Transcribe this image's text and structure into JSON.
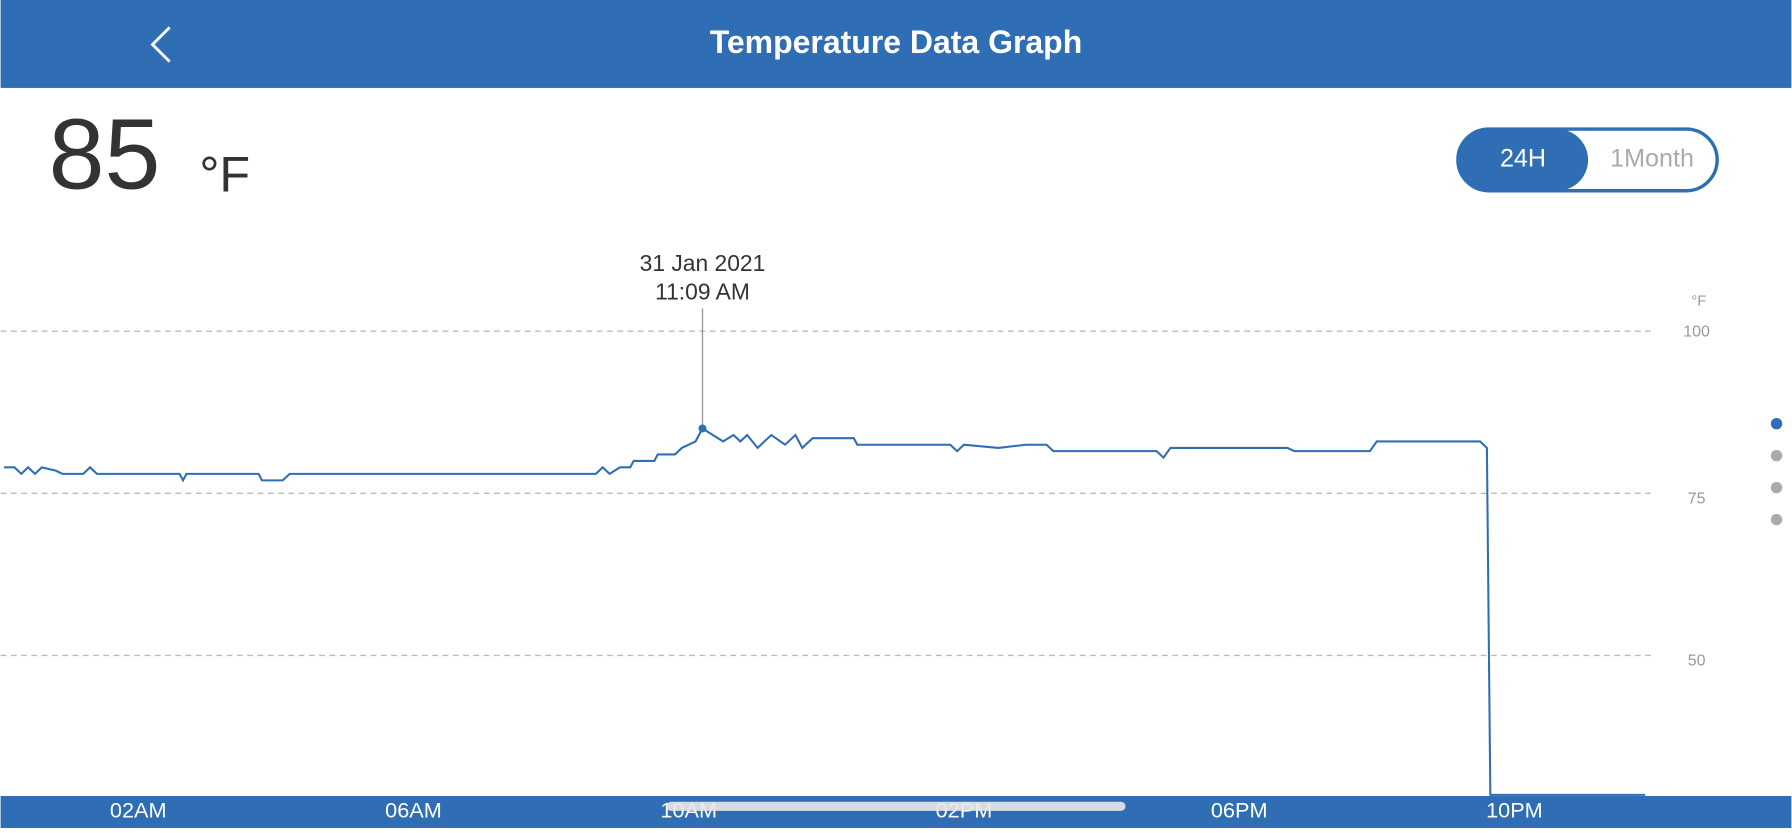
{
  "header": {
    "title": "Temperature Data Graph"
  },
  "reading": {
    "value": "85",
    "unit": "°F"
  },
  "toggle": {
    "options": [
      "24H",
      "1Month"
    ],
    "selected": "24H"
  },
  "tooltip": {
    "date": "31 Jan 2021",
    "time": "11:09 AM"
  },
  "chart_data": {
    "type": "line",
    "y_unit": "°F",
    "color": "#2f6db5",
    "grid": true,
    "xlim": [
      0,
      24
    ],
    "xticks": [
      {
        "value": 2,
        "label": "02AM"
      },
      {
        "value": 6,
        "label": "06AM"
      },
      {
        "value": 10,
        "label": "10AM"
      },
      {
        "value": 14,
        "label": "02PM"
      },
      {
        "value": 18,
        "label": "06PM"
      },
      {
        "value": 22,
        "label": "10PM"
      }
    ],
    "ylim": [
      28.5,
      100
    ],
    "yticks": [
      50,
      75,
      100
    ],
    "series": [
      {
        "name": "Temperature",
        "color": "#2f6db5",
        "x": [
          0.05,
          0.2,
          0.3,
          0.4,
          0.5,
          0.6,
          0.8,
          0.9,
          1.2,
          1.3,
          1.4,
          2.6,
          2.65,
          2.7,
          3.75,
          3.8,
          4.1,
          4.2,
          8.65,
          8.75,
          8.85,
          9.0,
          9.15,
          9.2,
          9.5,
          9.55,
          9.8,
          9.9,
          10.1,
          10.2,
          10.35,
          10.5,
          10.65,
          10.75,
          10.85,
          11.0,
          11.2,
          11.4,
          11.55,
          11.65,
          11.8,
          12.4,
          12.45,
          13.8,
          13.9,
          14.0,
          14.5,
          14.9,
          15.2,
          15.3,
          16.8,
          16.9,
          17.0,
          18.7,
          18.8,
          19.9,
          20.0,
          20.2,
          21.5,
          21.6,
          21.65,
          23.9
        ],
        "values": [
          79,
          79,
          78,
          79,
          78,
          79,
          78.5,
          78,
          78,
          79,
          78,
          78,
          77,
          78,
          78,
          77,
          77,
          78,
          78,
          79,
          78,
          79,
          79,
          80,
          80,
          81,
          81,
          82,
          83,
          85,
          84,
          83,
          84,
          83,
          84,
          82,
          84,
          82.5,
          84,
          82,
          83.5,
          83.5,
          82.5,
          82.5,
          81.5,
          82.5,
          82,
          82.5,
          82.5,
          81.5,
          81.5,
          80.5,
          82,
          82,
          81.5,
          81.5,
          83,
          83,
          83,
          82,
          28.5,
          28.5
        ]
      }
    ],
    "highlight_index": 29
  }
}
